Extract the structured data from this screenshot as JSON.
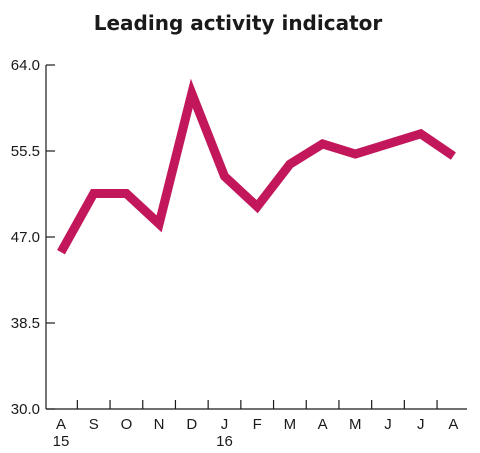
{
  "chart_data": {
    "type": "line",
    "title": "Leading activity indicator",
    "xlabel": "",
    "ylabel": "",
    "categories": [
      "A",
      "S",
      "O",
      "N",
      "D",
      "J",
      "F",
      "M",
      "A",
      "M",
      "J",
      "J",
      "A"
    ],
    "year_labels": [
      {
        "index": 0,
        "label": "15"
      },
      {
        "index": 5,
        "label": "16"
      }
    ],
    "y_ticks": [
      "64.0",
      "55.5",
      "47.0",
      "38.5",
      "30.0"
    ],
    "ylim": [
      30.0,
      64.0
    ],
    "grid": false,
    "series": [
      {
        "values": [
          45.5,
          51.3,
          51.3,
          48.3,
          61.2,
          53.0,
          50.0,
          54.2,
          56.2,
          55.2,
          56.2,
          57.2,
          55.0
        ]
      }
    ],
    "colors": {
      "series": "#c2185b",
      "axis": "#1a1a1a"
    }
  }
}
